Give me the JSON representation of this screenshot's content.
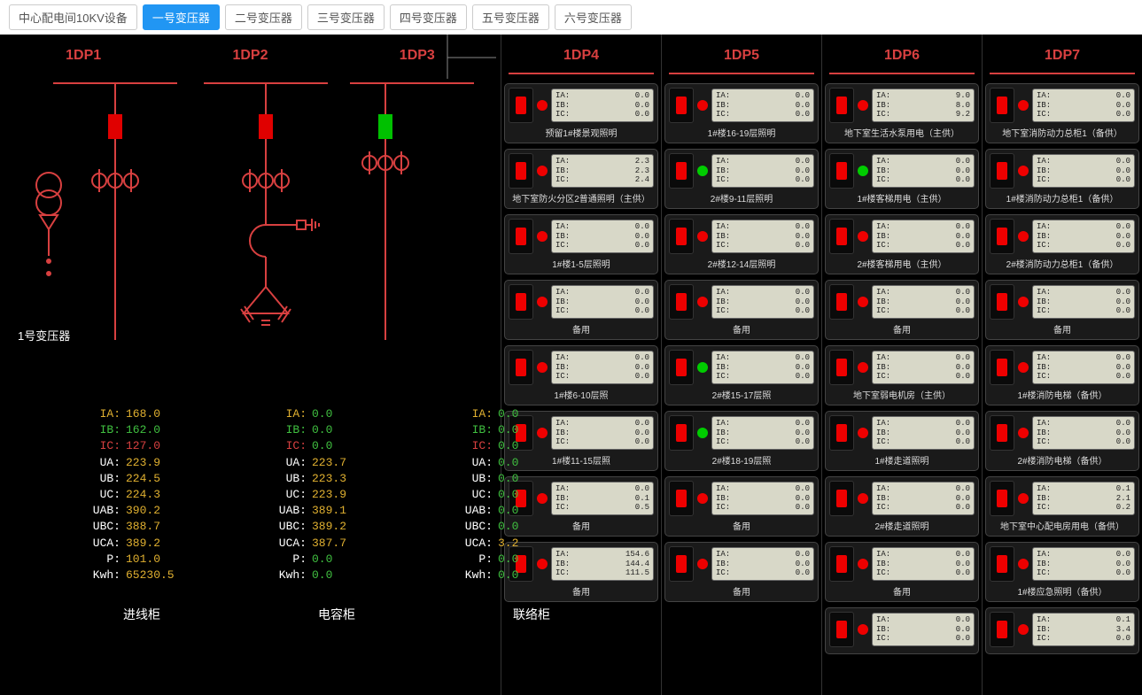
{
  "tabs": [
    {
      "label": "中心配电间10KV设备",
      "active": false
    },
    {
      "label": "一号变压器",
      "active": true
    },
    {
      "label": "二号变压器",
      "active": false
    },
    {
      "label": "三号变压器",
      "active": false
    },
    {
      "label": "四号变压器",
      "active": false
    },
    {
      "label": "五号变压器",
      "active": false
    },
    {
      "label": "六号变压器",
      "active": false
    }
  ],
  "left": {
    "headers": [
      "1DP1",
      "1DP2",
      "1DP3"
    ],
    "transformer_label": "1号变压器",
    "bottom_labels": [
      "进线柜",
      "电容柜",
      "联络柜"
    ],
    "switch_colors": [
      "#e00000",
      "#e00000",
      "#00c000"
    ],
    "readings": [
      {
        "rows": [
          {
            "label": "IA:",
            "val": "168.0",
            "lc": "#e0b030",
            "vc": "#e0b030"
          },
          {
            "label": "IB:",
            "val": "162.0",
            "lc": "#40c040",
            "vc": "#40c040"
          },
          {
            "label": "IC:",
            "val": "127.0",
            "lc": "#d84040",
            "vc": "#d84040"
          },
          {
            "label": "UA:",
            "val": "223.9",
            "lc": "#fff",
            "vc": "#e0b030"
          },
          {
            "label": "UB:",
            "val": "224.5",
            "lc": "#fff",
            "vc": "#e0b030"
          },
          {
            "label": "UC:",
            "val": "224.3",
            "lc": "#fff",
            "vc": "#e0b030"
          },
          {
            "label": "UAB:",
            "val": "390.2",
            "lc": "#fff",
            "vc": "#e0b030"
          },
          {
            "label": "UBC:",
            "val": "388.7",
            "lc": "#fff",
            "vc": "#e0b030"
          },
          {
            "label": "UCA:",
            "val": "389.2",
            "lc": "#fff",
            "vc": "#e0b030"
          },
          {
            "label": "P:",
            "val": "101.0",
            "lc": "#fff",
            "vc": "#e0b030"
          },
          {
            "label": "Kwh:",
            "val": "65230.5",
            "lc": "#fff",
            "vc": "#e0b030"
          }
        ]
      },
      {
        "rows": [
          {
            "label": "IA:",
            "val": "0.0",
            "lc": "#e0b030",
            "vc": "#40c040"
          },
          {
            "label": "IB:",
            "val": "0.0",
            "lc": "#40c040",
            "vc": "#40c040"
          },
          {
            "label": "IC:",
            "val": "0.0",
            "lc": "#d84040",
            "vc": "#40c040"
          },
          {
            "label": "UA:",
            "val": "223.7",
            "lc": "#fff",
            "vc": "#e0b030"
          },
          {
            "label": "UB:",
            "val": "223.3",
            "lc": "#fff",
            "vc": "#e0b030"
          },
          {
            "label": "UC:",
            "val": "223.9",
            "lc": "#fff",
            "vc": "#e0b030"
          },
          {
            "label": "UAB:",
            "val": "389.1",
            "lc": "#fff",
            "vc": "#e0b030"
          },
          {
            "label": "UBC:",
            "val": "389.2",
            "lc": "#fff",
            "vc": "#e0b030"
          },
          {
            "label": "UCA:",
            "val": "387.7",
            "lc": "#fff",
            "vc": "#e0b030"
          },
          {
            "label": "P:",
            "val": "0.0",
            "lc": "#fff",
            "vc": "#40c040"
          },
          {
            "label": "Kwh:",
            "val": "0.0",
            "lc": "#fff",
            "vc": "#40c040"
          }
        ]
      },
      {
        "rows": [
          {
            "label": "IA:",
            "val": "0.0",
            "lc": "#e0b030",
            "vc": "#40c040"
          },
          {
            "label": "IB:",
            "val": "0.0",
            "lc": "#40c040",
            "vc": "#40c040"
          },
          {
            "label": "IC:",
            "val": "0.0",
            "lc": "#d84040",
            "vc": "#40c040"
          },
          {
            "label": "UA:",
            "val": "0.0",
            "lc": "#fff",
            "vc": "#40c040"
          },
          {
            "label": "UB:",
            "val": "0.0",
            "lc": "#fff",
            "vc": "#40c040"
          },
          {
            "label": "UC:",
            "val": "0.0",
            "lc": "#fff",
            "vc": "#40c040"
          },
          {
            "label": "UAB:",
            "val": "0.0",
            "lc": "#fff",
            "vc": "#40c040"
          },
          {
            "label": "UBC:",
            "val": "0.0",
            "lc": "#fff",
            "vc": "#40c040"
          },
          {
            "label": "UCA:",
            "val": "3.2",
            "lc": "#fff",
            "vc": "#e0b030"
          },
          {
            "label": "P:",
            "val": "0.0",
            "lc": "#fff",
            "vc": "#40c040"
          },
          {
            "label": "Kwh:",
            "val": "0.0",
            "lc": "#fff",
            "vc": "#40c040"
          }
        ]
      }
    ]
  },
  "right_columns": [
    {
      "header": "1DP4",
      "panels": [
        {
          "dot": "red",
          "ia": "0.0",
          "ib": "0.0",
          "ic": "0.0",
          "label": "预留1#楼景观照明"
        },
        {
          "dot": "red",
          "ia": "2.3",
          "ib": "2.3",
          "ic": "2.4",
          "label": "地下室防火分区2普通照明（主供）"
        },
        {
          "dot": "red",
          "ia": "0.0",
          "ib": "0.0",
          "ic": "0.0",
          "label": "1#楼1-5层照明"
        },
        {
          "dot": "red",
          "ia": "0.0",
          "ib": "0.0",
          "ic": "0.0",
          "label": "备用"
        },
        {
          "dot": "red",
          "ia": "0.0",
          "ib": "0.0",
          "ic": "0.0",
          "label": "1#楼6-10层照"
        },
        {
          "dot": "red",
          "ia": "0.0",
          "ib": "0.0",
          "ic": "0.0",
          "label": "1#楼11-15层照"
        },
        {
          "dot": "red",
          "ia": "0.0",
          "ib": "0.1",
          "ic": "0.5",
          "label": "备用"
        },
        {
          "dot": "red",
          "ia": "154.6",
          "ib": "144.4",
          "ic": "111.5",
          "label": "备用"
        }
      ]
    },
    {
      "header": "1DP5",
      "panels": [
        {
          "dot": "red",
          "ia": "0.0",
          "ib": "0.0",
          "ic": "0.0",
          "label": "1#楼16-19层照明"
        },
        {
          "dot": "green",
          "ia": "0.0",
          "ib": "0.0",
          "ic": "0.0",
          "label": "2#楼9-11层照明"
        },
        {
          "dot": "red",
          "ia": "0.0",
          "ib": "0.0",
          "ic": "0.0",
          "label": "2#楼12-14层照明"
        },
        {
          "dot": "red",
          "ia": "0.0",
          "ib": "0.0",
          "ic": "0.0",
          "label": "备用"
        },
        {
          "dot": "green",
          "ia": "0.0",
          "ib": "0.0",
          "ic": "0.0",
          "label": "2#楼15-17层照"
        },
        {
          "dot": "green",
          "ia": "0.0",
          "ib": "0.0",
          "ic": "0.0",
          "label": "2#楼18-19层照"
        },
        {
          "dot": "red",
          "ia": "0.0",
          "ib": "0.0",
          "ic": "0.0",
          "label": "备用"
        },
        {
          "dot": "red",
          "ia": "0.0",
          "ib": "0.0",
          "ic": "0.0",
          "label": "备用"
        }
      ]
    },
    {
      "header": "1DP6",
      "panels": [
        {
          "dot": "red",
          "ia": "9.0",
          "ib": "8.0",
          "ic": "9.2",
          "label": "地下室生活水泵用电（主供）"
        },
        {
          "dot": "green",
          "ia": "0.0",
          "ib": "0.0",
          "ic": "0.0",
          "label": "1#楼客梯用电（主供）"
        },
        {
          "dot": "red",
          "ia": "0.0",
          "ib": "0.0",
          "ic": "0.0",
          "label": "2#楼客梯用电（主供）"
        },
        {
          "dot": "red",
          "ia": "0.0",
          "ib": "0.0",
          "ic": "0.0",
          "label": "备用"
        },
        {
          "dot": "red",
          "ia": "0.0",
          "ib": "0.0",
          "ic": "0.0",
          "label": "地下室弱电机房（主供）"
        },
        {
          "dot": "red",
          "ia": "0.0",
          "ib": "0.0",
          "ic": "0.0",
          "label": "1#楼走道照明"
        },
        {
          "dot": "red",
          "ia": "0.0",
          "ib": "0.0",
          "ic": "0.0",
          "label": "2#楼走道照明"
        },
        {
          "dot": "red",
          "ia": "0.0",
          "ib": "0.0",
          "ic": "0.0",
          "label": "备用"
        },
        {
          "dot": "red",
          "ia": "0.0",
          "ib": "0.0",
          "ic": "0.0",
          "label": ""
        }
      ]
    },
    {
      "header": "1DP7",
      "panels": [
        {
          "dot": "red",
          "ia": "0.0",
          "ib": "0.0",
          "ic": "0.0",
          "label": "地下室消防动力总柜1（备供）"
        },
        {
          "dot": "red",
          "ia": "0.0",
          "ib": "0.0",
          "ic": "0.0",
          "label": "1#楼消防动力总柜1（备供）"
        },
        {
          "dot": "red",
          "ia": "0.0",
          "ib": "0.0",
          "ic": "0.0",
          "label": "2#楼消防动力总柜1（备供）"
        },
        {
          "dot": "red",
          "ia": "0.0",
          "ib": "0.0",
          "ic": "0.0",
          "label": "备用"
        },
        {
          "dot": "red",
          "ia": "0.0",
          "ib": "0.0",
          "ic": "0.0",
          "label": "1#楼消防电梯（备供）"
        },
        {
          "dot": "red",
          "ia": "0.0",
          "ib": "0.0",
          "ic": "0.0",
          "label": "2#楼消防电梯（备供）"
        },
        {
          "dot": "red",
          "ia": "0.1",
          "ib": "2.1",
          "ic": "0.2",
          "label": "地下室中心配电房用电（备供）"
        },
        {
          "dot": "red",
          "ia": "0.0",
          "ib": "0.0",
          "ic": "0.0",
          "label": "1#楼应急照明（备供）"
        },
        {
          "dot": "red",
          "ia": "0.1",
          "ib": "3.4",
          "ic": "0.0",
          "label": ""
        }
      ]
    }
  ],
  "lcd_labels": {
    "ia": "IA:",
    "ib": "IB:",
    "ic": "IC:"
  }
}
